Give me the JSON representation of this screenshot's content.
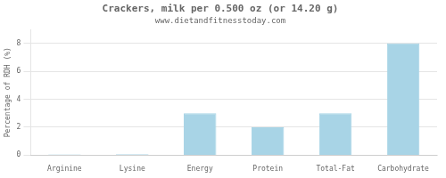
{
  "chart_data": {
    "type": "bar",
    "title": "Crackers, milk per 0.500 oz (or 14.20 g)",
    "subtitle": "www.dietandfitnesstoday.com",
    "categories": [
      "Arginine",
      "Lysine",
      "Energy",
      "Protein",
      "Total-Fat",
      "Carbohydrate"
    ],
    "values": [
      0.05,
      0.08,
      3.0,
      2.0,
      3.0,
      8.0
    ],
    "color": "#a8d4e6",
    "ylabel": "Percentage of RDH (%)",
    "ylim": [
      0,
      9
    ],
    "yticks": [
      0,
      2,
      4,
      6,
      8
    ],
    "grid": true
  }
}
